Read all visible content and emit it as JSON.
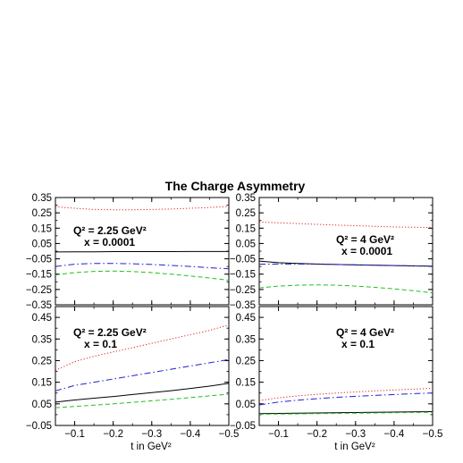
{
  "chart_data": {
    "title": "The Charge Asymmetry",
    "xlabel": "t in GeV²",
    "x_tick_labels": [
      "−0.1",
      "−0.2",
      "−0.3",
      "−0.4",
      "−0.5"
    ],
    "panels": [
      {
        "type": "line",
        "annotation": [
          "Q² = 2.25 GeV²",
          "x = 0.0001"
        ],
        "xlim": [
          -0.05,
          -0.5
        ],
        "ylim": [
          -0.35,
          0.35
        ],
        "y_ticks": [
          -0.35,
          -0.25,
          -0.15,
          -0.05,
          0.05,
          0.15,
          0.25,
          0.35
        ],
        "y_tick_labels": [
          "−0.35",
          "−0.25",
          "−0.15",
          "−0.05",
          "0.05",
          "0.15",
          "0.25",
          "0.35"
        ],
        "x": [
          -0.05,
          -0.1,
          -0.15,
          -0.2,
          -0.25,
          -0.3,
          -0.35,
          -0.4,
          -0.45,
          -0.5
        ],
        "series": [
          {
            "style": "dotted",
            "color": "#e02020",
            "values": [
              0.29,
              0.28,
              0.272,
              0.27,
              0.27,
              0.272,
              0.275,
              0.28,
              0.285,
              0.292
            ]
          },
          {
            "style": "solid",
            "color": "#000000",
            "values": [
              -0.005,
              -0.004,
              -0.004,
              -0.003,
              -0.003,
              -0.003,
              -0.003,
              -0.002,
              -0.002,
              -0.002
            ]
          },
          {
            "style": "dashdot",
            "color": "#2020d0",
            "values": [
              -0.1,
              -0.085,
              -0.08,
              -0.08,
              -0.082,
              -0.087,
              -0.093,
              -0.1,
              -0.108,
              -0.115
            ]
          },
          {
            "style": "dashed",
            "color": "#20c020",
            "values": [
              -0.155,
              -0.14,
              -0.132,
              -0.13,
              -0.133,
              -0.14,
              -0.15,
              -0.162,
              -0.175,
              -0.19
            ]
          }
        ]
      },
      {
        "type": "line",
        "annotation": [
          "Q² = 4 GeV²",
          "x = 0.0001"
        ],
        "xlim": [
          -0.05,
          -0.5
        ],
        "ylim": [
          -0.35,
          0.35
        ],
        "y_ticks": [
          -0.35,
          -0.25,
          -0.15,
          -0.05,
          0.05,
          0.15,
          0.25,
          0.35
        ],
        "y_tick_labels": [
          "−0.35",
          "−0.25",
          "−0.15",
          "−0.05",
          "0.05",
          "0.15",
          "0.25",
          "0.35"
        ],
        "x": [
          -0.05,
          -0.1,
          -0.15,
          -0.2,
          -0.25,
          -0.3,
          -0.35,
          -0.4,
          -0.45,
          -0.5
        ],
        "series": [
          {
            "style": "dotted",
            "color": "#e02020",
            "values": [
              0.19,
              0.185,
              0.18,
              0.175,
              0.17,
              0.166,
              0.162,
              0.158,
              0.156,
              0.155
            ]
          },
          {
            "style": "solid",
            "color": "#000000",
            "values": [
              -0.065,
              -0.075,
              -0.08,
              -0.084,
              -0.087,
              -0.09,
              -0.092,
              -0.094,
              -0.096,
              -0.098
            ]
          },
          {
            "style": "dashdot",
            "color": "#2020d0",
            "values": [
              -0.085,
              -0.084,
              -0.084,
              -0.085,
              -0.087,
              -0.089,
              -0.091,
              -0.093,
              -0.096,
              -0.1
            ]
          },
          {
            "style": "dashed",
            "color": "#20c020",
            "values": [
              -0.24,
              -0.228,
              -0.222,
              -0.22,
              -0.222,
              -0.228,
              -0.236,
              -0.246,
              -0.258,
              -0.272
            ]
          }
        ]
      },
      {
        "type": "line",
        "annotation": [
          "Q² = 2.25 GeV²",
          "x = 0.1"
        ],
        "xlim": [
          -0.05,
          -0.5
        ],
        "ylim": [
          -0.05,
          0.5
        ],
        "y_ticks": [
          -0.05,
          0.05,
          0.15,
          0.25,
          0.35,
          0.45
        ],
        "y_tick_labels": [
          "−0.05",
          "0.05",
          "0.15",
          "0.25",
          "0.35",
          "0.45"
        ],
        "x": [
          -0.05,
          -0.1,
          -0.15,
          -0.2,
          -0.25,
          -0.3,
          -0.35,
          -0.4,
          -0.45,
          -0.5
        ],
        "series": [
          {
            "style": "dotted",
            "color": "#e02020",
            "values": [
              0.205,
              0.245,
              0.27,
              0.29,
              0.31,
              0.33,
              0.35,
              0.37,
              0.39,
              0.415
            ]
          },
          {
            "style": "dashdot",
            "color": "#2020d0",
            "values": [
              0.11,
              0.135,
              0.15,
              0.165,
              0.18,
              0.195,
              0.21,
              0.225,
              0.24,
              0.255
            ]
          },
          {
            "style": "solid",
            "color": "#000000",
            "values": [
              0.058,
              0.068,
              0.076,
              0.084,
              0.093,
              0.102,
              0.111,
              0.121,
              0.132,
              0.145
            ]
          },
          {
            "style": "dashed",
            "color": "#20c020",
            "values": [
              0.032,
              0.038,
              0.044,
              0.05,
              0.057,
              0.064,
              0.071,
              0.079,
              0.087,
              0.095
            ]
          }
        ]
      },
      {
        "type": "line",
        "annotation": [
          "Q² = 4 GeV²",
          "x = 0.1"
        ],
        "xlim": [
          -0.05,
          -0.5
        ],
        "ylim": [
          -0.05,
          0.5
        ],
        "y_ticks": [
          -0.05,
          0.05,
          0.15,
          0.25,
          0.35,
          0.45
        ],
        "y_tick_labels": [
          "−0.05",
          "0.05",
          "0.15",
          "0.25",
          "0.35",
          "0.45"
        ],
        "x": [
          -0.05,
          -0.1,
          -0.15,
          -0.2,
          -0.25,
          -0.3,
          -0.35,
          -0.4,
          -0.45,
          -0.5
        ],
        "series": [
          {
            "style": "dotted",
            "color": "#e02020",
            "values": [
              0.065,
              0.078,
              0.087,
              0.094,
              0.1,
              0.105,
              0.11,
              0.114,
              0.118,
              0.122
            ]
          },
          {
            "style": "dashdot",
            "color": "#2020d0",
            "values": [
              0.045,
              0.058,
              0.067,
              0.074,
              0.08,
              0.085,
              0.089,
              0.093,
              0.097,
              0.1
            ]
          },
          {
            "style": "solid",
            "color": "#000000",
            "values": [
              0.005,
              0.006,
              0.007,
              0.008,
              0.009,
              0.01,
              0.011,
              0.012,
              0.013,
              0.014
            ]
          },
          {
            "style": "dashed",
            "color": "#20c020",
            "values": [
              0.002,
              0.003,
              0.004,
              0.005,
              0.006,
              0.007,
              0.008,
              0.009,
              0.01,
              0.011
            ]
          }
        ]
      }
    ]
  }
}
